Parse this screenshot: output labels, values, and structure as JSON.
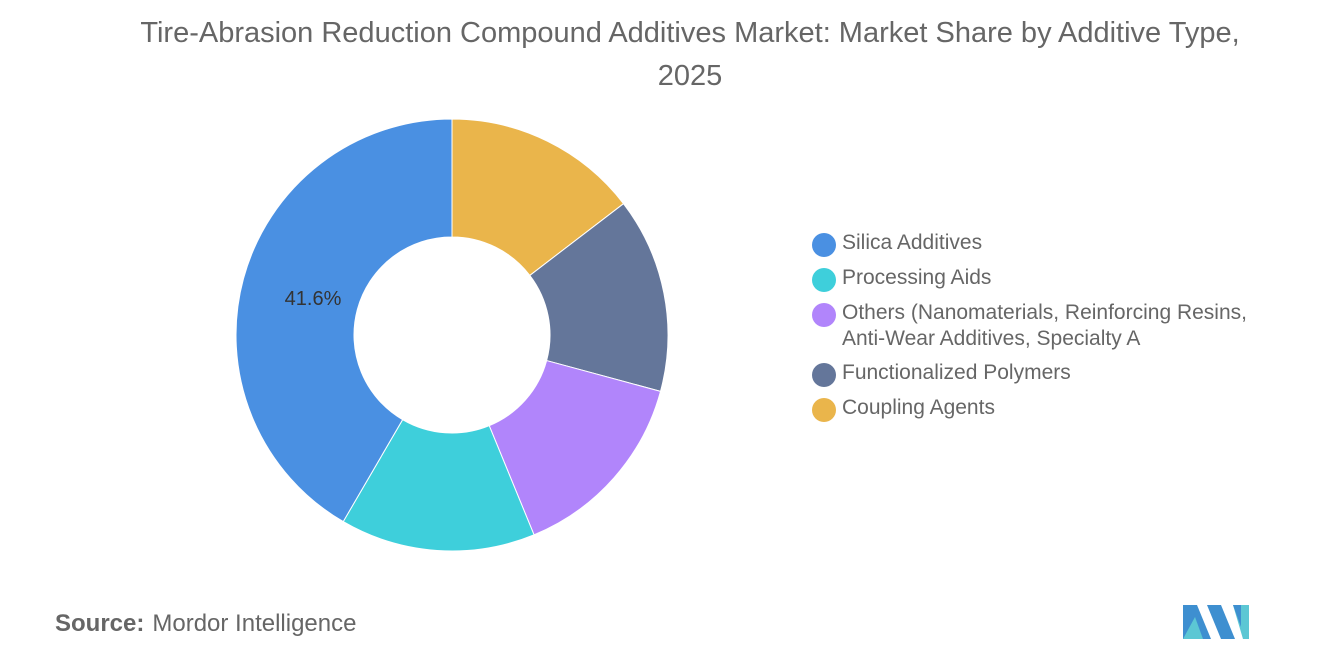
{
  "title": "Tire-Abrasion Reduction Compound Additives Market: Market Share by Additive Type, 2025",
  "chart_data": {
    "type": "pie",
    "donut": true,
    "categories": [
      "Silica Additives",
      "Processing Aids",
      "Others (Nanomaterials, Reinforcing Resins, Anti-Wear Additives, Specialty A",
      "Functionalized Polymers",
      "Coupling Agents"
    ],
    "values": [
      41.6,
      14.6,
      14.6,
      14.6,
      14.6
    ],
    "colors": [
      "#4a90e2",
      "#3ecfdb",
      "#b185fb",
      "#64769a",
      "#eab54b"
    ],
    "data_labels": [
      "41.6%",
      "",
      "",
      "",
      ""
    ],
    "legend_position": "right"
  },
  "source": {
    "prefix": "Source:",
    "text": "Mordor Intelligence"
  },
  "logo": {
    "icon": "mordor-intelligence-logo"
  }
}
